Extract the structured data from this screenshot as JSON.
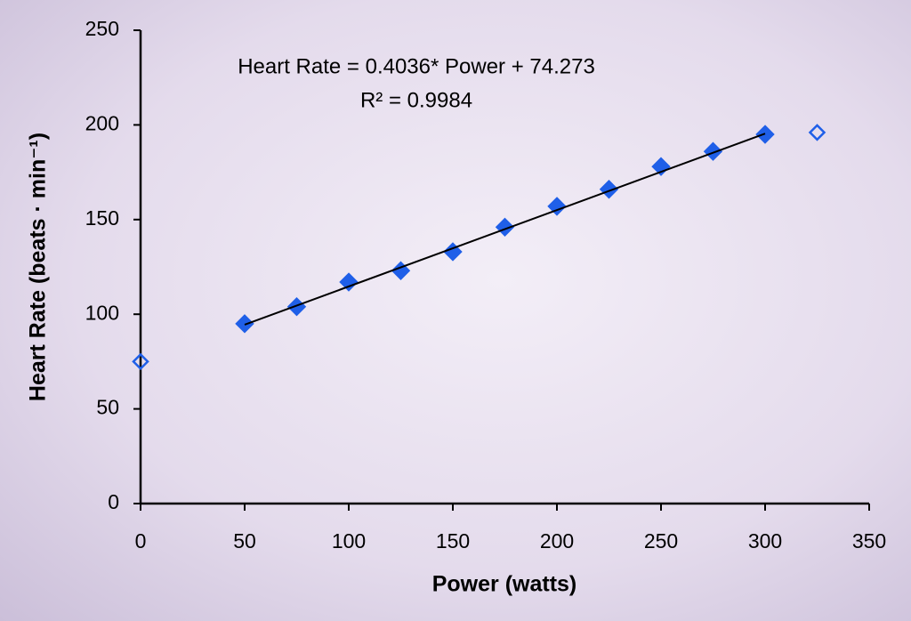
{
  "chart_data": {
    "type": "scatter",
    "xlabel": "Power (watts)",
    "ylabel": "Heart Rate (beats · min⁻¹)",
    "annotations": [
      "Heart Rate = 0.4036* Power + 74.273",
      "R² = 0.9984"
    ],
    "xlim": [
      0,
      350
    ],
    "xticks": [
      0,
      50,
      100,
      150,
      200,
      250,
      300,
      350
    ],
    "ylim": [
      0,
      250
    ],
    "yticks": [
      0,
      50,
      100,
      150,
      200,
      250
    ],
    "grid": false,
    "series": [
      {
        "type": "scatter",
        "marker": "filled",
        "color": "#1f5fe8",
        "x": [
          50,
          75,
          100,
          125,
          150,
          175,
          200,
          225,
          250,
          275,
          300
        ],
        "values": [
          95,
          104,
          117,
          123,
          133,
          146,
          157,
          166,
          178,
          186,
          195
        ]
      },
      {
        "type": "scatter",
        "marker": "open",
        "color": "#1f5fe8",
        "x": [
          0,
          325
        ],
        "values": [
          75,
          196
        ]
      },
      {
        "type": "line",
        "color": "#000000",
        "x": [
          50,
          300
        ],
        "values": [
          94.5,
          195.4
        ]
      }
    ]
  }
}
